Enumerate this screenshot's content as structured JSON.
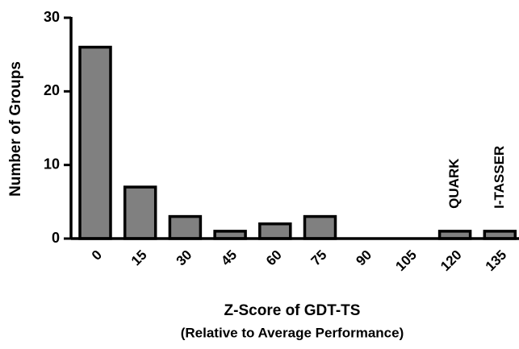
{
  "chart_data": {
    "type": "bar",
    "title": "Z-Score of GDT-TS",
    "subtitle": "(Relative to Average Performance)",
    "y_label": "Number of Groups",
    "categories": [
      "0",
      "15",
      "30",
      "45",
      "60",
      "75",
      "90",
      "105",
      "120",
      "135"
    ],
    "values": [
      26,
      7,
      3,
      1,
      2,
      3,
      0,
      0,
      1,
      1
    ],
    "color": "#808080",
    "ylim": [
      0,
      30
    ],
    "yticks": [
      0,
      10,
      20,
      30
    ],
    "annotations": [
      {
        "text": "QUARK",
        "category": "120"
      },
      {
        "text": "I-TASSER",
        "category": "135"
      }
    ]
  }
}
